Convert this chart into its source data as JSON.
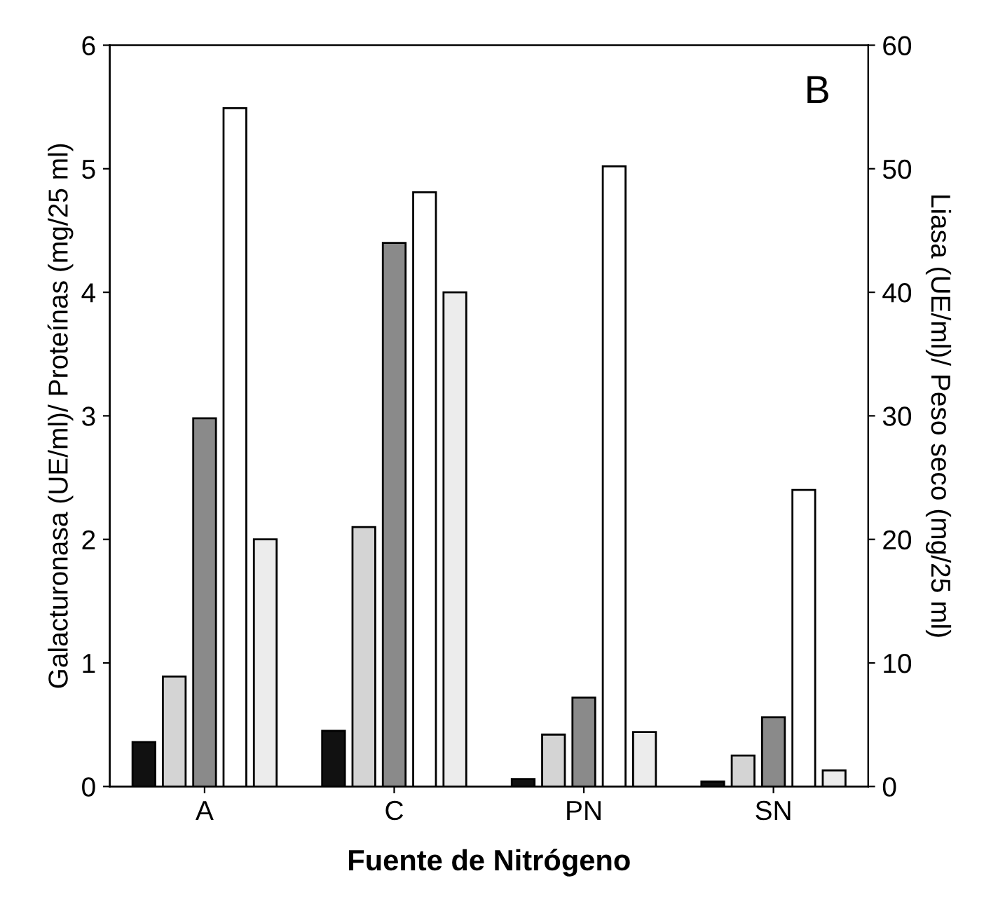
{
  "chart_data": {
    "type": "bar",
    "xlabel": "Fuente de Nitrógeno",
    "ylabel": "Galacturonasa (UE/ml)/ Proteínas (mg/25 ml)",
    "y2label": "Liasa (UE/ml)/ Peso seco (mg/25 ml)",
    "categories": [
      "A",
      "C",
      "PN",
      "SN"
    ],
    "series": [
      {
        "color": "#111111",
        "values": [
          0.36,
          0.45,
          0.06,
          0.04
        ]
      },
      {
        "color": "#d4d4d4",
        "values": [
          0.89,
          2.1,
          0.42,
          0.25
        ]
      },
      {
        "color": "#8a8a8a",
        "values": [
          2.98,
          4.4,
          0.72,
          0.56
        ]
      },
      {
        "color": "#ffffff",
        "axis": "y2",
        "values": [
          54.9,
          48.1,
          50.2,
          24.0
        ]
      },
      {
        "color": "#ececec",
        "axis": "y2",
        "values": [
          20.0,
          40.0,
          4.4,
          1.3
        ]
      }
    ],
    "ylim": [
      0,
      6
    ],
    "yticks": [
      0,
      1,
      2,
      3,
      4,
      5,
      6
    ],
    "y2lim": [
      0,
      60
    ],
    "y2ticks": [
      0,
      10,
      20,
      30,
      40,
      50,
      60
    ],
    "annotations": [
      "B"
    ],
    "grid": false
  }
}
